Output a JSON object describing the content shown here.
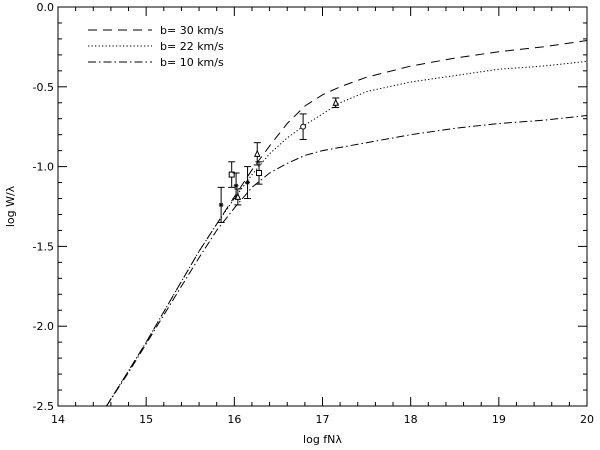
{
  "chart_data": {
    "type": "line",
    "title": "",
    "xlabel": "log fNλ",
    "ylabel": "log W/λ",
    "xlim": [
      14,
      20
    ],
    "ylim": [
      -2.5,
      0.0
    ],
    "xticks": [
      "14",
      "15",
      "16",
      "17",
      "18",
      "19",
      "20"
    ],
    "yticks": [
      "-2.5",
      "-2.0",
      "-1.5",
      "-1.0",
      "-0.5",
      "0.0"
    ],
    "grid": false,
    "legend_position": "top-left",
    "series": [
      {
        "name": "b= 30 km/s",
        "style": "dashed",
        "x": [
          14.55,
          14.8,
          15.0,
          15.2,
          15.4,
          15.6,
          15.8,
          16.0,
          16.2,
          16.4,
          16.6,
          16.8,
          17.0,
          17.2,
          17.5,
          18.0,
          18.5,
          19.0,
          19.5,
          20.0
        ],
        "y": [
          -2.5,
          -2.28,
          -2.1,
          -1.91,
          -1.72,
          -1.53,
          -1.36,
          -1.19,
          -1.02,
          -0.87,
          -0.73,
          -0.62,
          -0.55,
          -0.5,
          -0.44,
          -0.37,
          -0.32,
          -0.28,
          -0.25,
          -0.21
        ]
      },
      {
        "name": "b= 22 km/s",
        "style": "dotted",
        "x": [
          14.55,
          14.8,
          15.0,
          15.2,
          15.4,
          15.6,
          15.8,
          16.0,
          16.2,
          16.4,
          16.6,
          16.8,
          17.0,
          17.2,
          17.5,
          18.0,
          18.5,
          19.0,
          19.5,
          20.0
        ],
        "y": [
          -2.5,
          -2.28,
          -2.1,
          -1.91,
          -1.72,
          -1.53,
          -1.36,
          -1.2,
          -1.05,
          -0.92,
          -0.82,
          -0.74,
          -0.67,
          -0.6,
          -0.53,
          -0.47,
          -0.43,
          -0.39,
          -0.37,
          -0.34
        ]
      },
      {
        "name": "b= 10 km/s",
        "style": "dashdot",
        "x": [
          14.55,
          14.8,
          15.0,
          15.2,
          15.4,
          15.6,
          15.8,
          16.0,
          16.2,
          16.4,
          16.6,
          16.8,
          17.0,
          17.5,
          18.0,
          18.5,
          19.0,
          19.5,
          20.0
        ],
        "y": [
          -2.5,
          -2.29,
          -2.11,
          -1.93,
          -1.75,
          -1.57,
          -1.4,
          -1.26,
          -1.13,
          -1.04,
          -0.98,
          -0.93,
          -0.9,
          -0.85,
          -0.8,
          -0.76,
          -0.73,
          -0.71,
          -0.68
        ]
      }
    ],
    "measurements": [
      {
        "marker": "asterisk",
        "x": 15.85,
        "y": -1.24,
        "yerr": 0.11
      },
      {
        "marker": "square",
        "x": 15.97,
        "y": -1.05,
        "yerr": 0.08
      },
      {
        "marker": "asterisk",
        "x": 16.02,
        "y": -1.12,
        "yerr": 0.08
      },
      {
        "marker": "triangle",
        "x": 16.04,
        "y": -1.19,
        "yerr": 0.05
      },
      {
        "marker": "asterisk",
        "x": 16.15,
        "y": -1.1,
        "yerr": 0.1
      },
      {
        "marker": "triangle",
        "x": 16.26,
        "y": -0.92,
        "yerr": 0.07
      },
      {
        "marker": "square",
        "x": 16.28,
        "y": -1.04,
        "yerr": 0.07
      },
      {
        "marker": "circle",
        "x": 16.78,
        "y": -0.75,
        "yerr": 0.08
      },
      {
        "marker": "triangle",
        "x": 17.15,
        "y": -0.6,
        "yerr": 0.03
      }
    ]
  },
  "colors": {
    "line": "#000000",
    "background": "#ffffff"
  }
}
